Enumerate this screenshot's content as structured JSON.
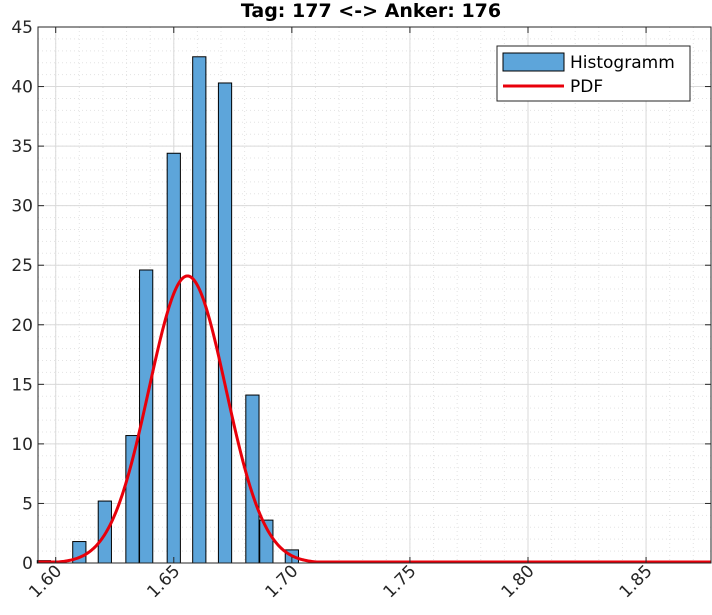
{
  "chart_data": {
    "type": "bar",
    "title": "Tag: 177 <-> Anker: 176",
    "xlabel": "",
    "ylabel": "",
    "xlim": [
      1.5925,
      1.8775
    ],
    "ylim": [
      0,
      45
    ],
    "x_ticks": [
      1.6,
      1.65,
      1.7,
      1.75,
      1.8,
      1.85
    ],
    "x_tick_labels": [
      "1.60",
      "1.65",
      "1.70",
      "1.75",
      "1.80",
      "1.85"
    ],
    "y_ticks": [
      0,
      5,
      10,
      15,
      20,
      25,
      30,
      35,
      40,
      45
    ],
    "y_tick_labels": [
      "0",
      "5",
      "10",
      "15",
      "20",
      "25",
      "30",
      "35",
      "40",
      "45"
    ],
    "grid": true,
    "legend_position": "top-right",
    "series": [
      {
        "name": "Histogramm",
        "kind": "bar",
        "color": "#5DA5DA",
        "bar_width": 0.0056,
        "x": [
          1.595,
          1.61,
          1.6208,
          1.6325,
          1.6383,
          1.65,
          1.6608,
          1.6717,
          1.6833,
          1.6892,
          1.7
        ],
        "values": [
          0.2,
          1.8,
          5.2,
          10.7,
          24.6,
          34.4,
          42.5,
          40.3,
          14.1,
          3.6,
          1.1
        ]
      },
      {
        "name": "PDF",
        "kind": "line",
        "color": "#E8000B",
        "mean": 1.6558,
        "std": 0.0163,
        "peak": 24.1,
        "x_range": [
          1.5925,
          1.8775
        ]
      }
    ]
  }
}
